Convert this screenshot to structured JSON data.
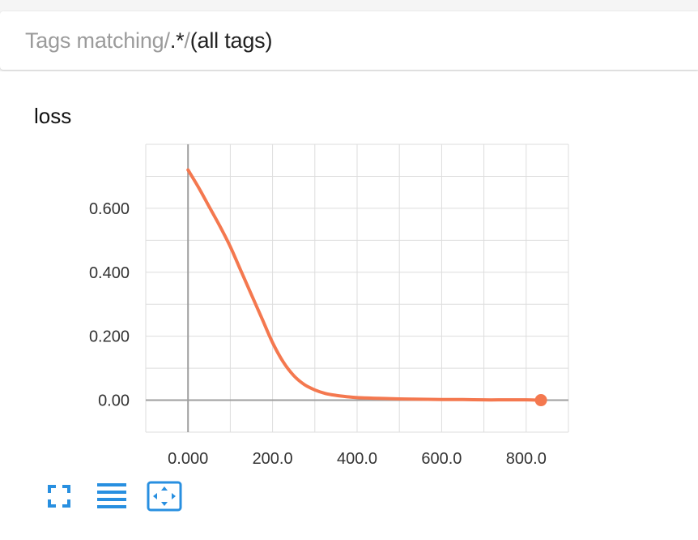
{
  "header": {
    "prefix": "Tags matching ",
    "regex_slash_open": "/",
    "regex": ".*",
    "regex_slash_close": "/",
    "suffix": " (all tags)"
  },
  "card": {
    "title": "loss"
  },
  "colors": {
    "series": "#f4784f",
    "accent": "#288fe0",
    "grid": "#dddddd",
    "axis": "#9e9e9e"
  },
  "chart_data": {
    "type": "line",
    "title": "loss",
    "xlabel": "",
    "ylabel": "",
    "xlim": [
      -100,
      900
    ],
    "ylim": [
      -0.1,
      0.8
    ],
    "xticks": [
      0,
      200,
      400,
      600,
      800
    ],
    "xtick_labels": [
      "0.000",
      "200.0",
      "400.0",
      "600.0",
      "800.0"
    ],
    "yticks": [
      0,
      0.2,
      0.4,
      0.6
    ],
    "ytick_labels": [
      "0.00",
      "0.200",
      "0.400",
      "0.600"
    ],
    "grid": true,
    "legend": "none",
    "series": [
      {
        "x": [
          0,
          25,
          50,
          75,
          100,
          125,
          150,
          175,
          200,
          225,
          250,
          275,
          300,
          325,
          350,
          375,
          400,
          450,
          500,
          550,
          600,
          650,
          700,
          750,
          800,
          835
        ],
        "values": [
          0.72,
          0.665,
          0.605,
          0.545,
          0.48,
          0.405,
          0.33,
          0.255,
          0.18,
          0.12,
          0.077,
          0.049,
          0.032,
          0.021,
          0.015,
          0.011,
          0.008,
          0.006,
          0.004,
          0.003,
          0.002,
          0.002,
          0.001,
          0.001,
          0.001,
          0.0
        ]
      }
    ],
    "highlight_point": {
      "x": 835,
      "y": 0.0
    }
  },
  "toolbar": {
    "fullscreen_icon": "fullscreen-icon",
    "logscale_icon": "list-lines-icon",
    "fitdomain_icon": "fit-domain-icon"
  }
}
